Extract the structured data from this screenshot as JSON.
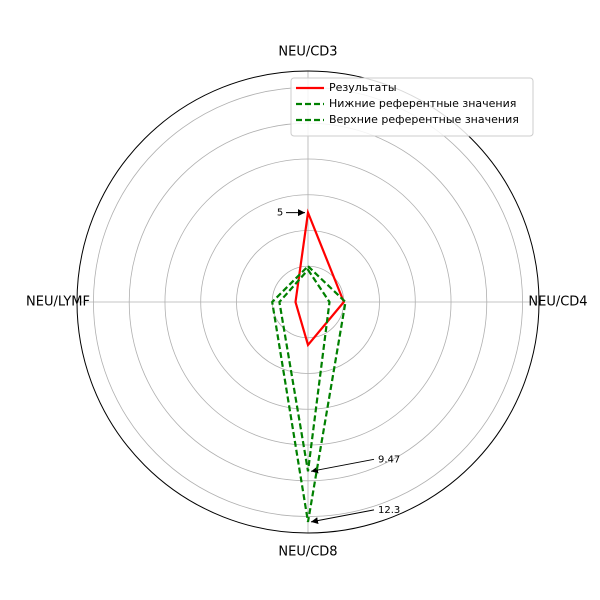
{
  "chart_data": {
    "type": "radar",
    "categories": [
      "NEU/CD3",
      "NEU/CD4",
      "NEU/CD8",
      "NEU/LYMF"
    ],
    "series": [
      {
        "name": "Результаты",
        "color": "#ff0000",
        "dashed": false,
        "values": [
          5,
          2,
          2.4,
          0.7
        ],
        "value_labels": [
          "5",
          null,
          null,
          null
        ]
      },
      {
        "name": "Нижние референтные значения",
        "color": "#008000",
        "dashed": true,
        "values": [
          1.8,
          1.2,
          9.47,
          1.6
        ],
        "value_labels": [
          null,
          null,
          "9.47",
          null
        ]
      },
      {
        "name": "Верхние референтные значения",
        "color": "#008000",
        "dashed": true,
        "values": [
          2,
          2.1,
          12.3,
          2
        ],
        "value_labels": [
          null,
          null,
          "12.3",
          null
        ]
      }
    ],
    "ylim": [
      0,
      12.92
    ],
    "yticks": [
      2,
      4,
      6,
      8,
      10,
      12
    ],
    "grid": true,
    "legend": "upper right"
  }
}
